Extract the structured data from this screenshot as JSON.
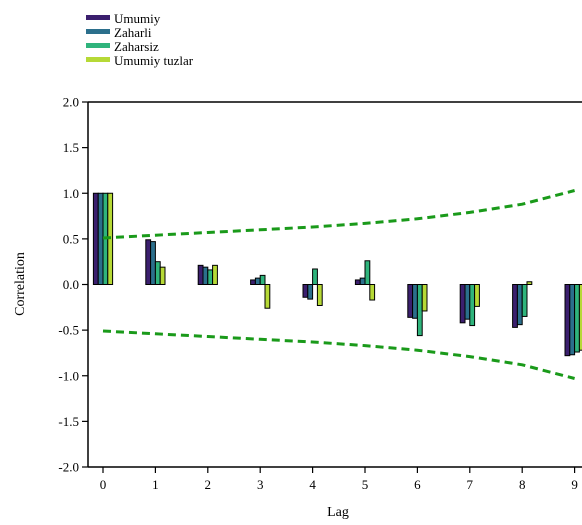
{
  "chart_data": {
    "type": "bar",
    "xlabel": "Lag",
    "ylabel": "Correlation",
    "ylim": [
      -2.0,
      2.0
    ],
    "yticks": [
      "2.0",
      "1.5",
      "1.0",
      "0.5",
      "0.0",
      "-0.5",
      "-1.0",
      "-1.5",
      "-2.0"
    ],
    "categories": [
      "0",
      "1",
      "2",
      "3",
      "4",
      "5",
      "6",
      "7",
      "8",
      "9"
    ],
    "legend_position": "top-left",
    "series": [
      {
        "name": "Umumiy",
        "color": "#3b1f6e",
        "values": [
          1.0,
          0.49,
          0.21,
          0.05,
          -0.14,
          0.05,
          -0.36,
          -0.42,
          -0.47,
          -0.78
        ]
      },
      {
        "name": "Zaharli",
        "color": "#2b6f8c",
        "values": [
          1.0,
          0.47,
          0.19,
          0.07,
          -0.16,
          0.07,
          -0.37,
          -0.38,
          -0.44,
          -0.77
        ]
      },
      {
        "name": "Zaharsiz",
        "color": "#2fb47c",
        "values": [
          1.0,
          0.25,
          0.16,
          0.1,
          0.17,
          0.26,
          -0.56,
          -0.45,
          -0.35,
          -0.74
        ]
      },
      {
        "name": "Umumiy tuzlar",
        "color": "#b6d936",
        "values": [
          1.0,
          0.19,
          0.21,
          -0.26,
          -0.23,
          -0.17,
          -0.29,
          -0.24,
          0.03,
          -0.72
        ]
      }
    ],
    "confidence_band": {
      "color": "#1a9a1a",
      "lag": [
        0,
        1,
        2,
        3,
        4,
        5,
        6,
        7,
        8,
        9
      ],
      "upper": [
        0.51,
        0.54,
        0.57,
        0.6,
        0.63,
        0.67,
        0.72,
        0.79,
        0.88,
        1.03
      ],
      "lower": [
        -0.51,
        -0.54,
        -0.57,
        -0.6,
        -0.63,
        -0.67,
        -0.72,
        -0.79,
        -0.88,
        -1.03
      ]
    }
  }
}
